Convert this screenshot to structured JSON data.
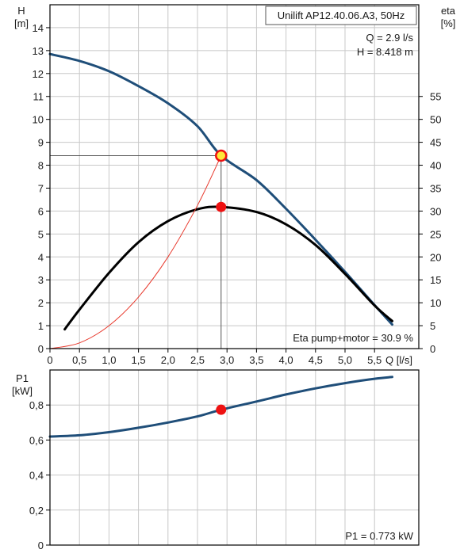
{
  "pump_model": "Unilift AP12.40.06.A3, 50Hz",
  "operating_point": {
    "q_text": "Q = 2.9 l/s",
    "h_text": "H = 8.418 m"
  },
  "eta_text": "Eta pump+motor = 30.9 %",
  "p1_text": "P1 = 0.773 kW",
  "colors": {
    "curve_blue": "#1f4e79",
    "eta_black": "#000000",
    "system_red": "#e8382c",
    "marker_red": "#ee1111",
    "marker_yellow": "#ffe83a",
    "grid": "#c8c8c8"
  },
  "chart_data": [
    {
      "type": "line",
      "name": "head-efficiency-chart",
      "left_axis": {
        "label_top": "H",
        "label_unit": "[m]",
        "range": [
          0,
          15
        ],
        "ticks": [
          "0",
          "1",
          "2",
          "3",
          "4",
          "5",
          "6",
          "7",
          "8",
          "9",
          "10",
          "11",
          "12",
          "13",
          "14"
        ]
      },
      "right_axis": {
        "label_top": "eta",
        "label_unit": "[%]",
        "range": [
          0,
          75
        ],
        "ticks": [
          "0",
          "5",
          "10",
          "15",
          "20",
          "25",
          "30",
          "35",
          "40",
          "45",
          "50",
          "55"
        ]
      },
      "x_axis": {
        "label": "Q [l/s]",
        "range": [
          0,
          6.25
        ],
        "ticks": [
          "0",
          "0,5",
          "1,0",
          "1,5",
          "2,0",
          "2,5",
          "3,0",
          "3,5",
          "4,0",
          "4,5",
          "5,0",
          "5,5"
        ]
      },
      "grid": true,
      "series": [
        {
          "kind": "head",
          "axis": "left",
          "points": [
            [
              0,
              12.85
            ],
            [
              0.5,
              12.55
            ],
            [
              1.0,
              12.1
            ],
            [
              1.5,
              11.45
            ],
            [
              2.0,
              10.7
            ],
            [
              2.5,
              9.7
            ],
            [
              2.9,
              8.418
            ],
            [
              3.5,
              7.35
            ],
            [
              4.0,
              6.1
            ],
            [
              4.5,
              4.75
            ],
            [
              5.0,
              3.35
            ],
            [
              5.5,
              1.9
            ],
            [
              5.8,
              1.05
            ]
          ]
        },
        {
          "kind": "efficiency",
          "axis": "right",
          "points": [
            [
              0.25,
              4.2
            ],
            [
              0.5,
              8.5
            ],
            [
              1.0,
              16.5
            ],
            [
              1.5,
              23.2
            ],
            [
              2.0,
              27.8
            ],
            [
              2.5,
              30.4
            ],
            [
              2.9,
              30.9
            ],
            [
              3.5,
              29.8
            ],
            [
              4.0,
              27.1
            ],
            [
              4.5,
              22.6
            ],
            [
              5.0,
              16.3
            ],
            [
              5.5,
              9.4
            ],
            [
              5.8,
              6.0
            ]
          ]
        },
        {
          "kind": "system",
          "axis": "left",
          "points": [
            [
              0,
              0
            ],
            [
              0.5,
              0.25
            ],
            [
              1.0,
              1.0
            ],
            [
              1.5,
              2.25
            ],
            [
              2.0,
              4.0
            ],
            [
              2.5,
              6.25
            ],
            [
              2.9,
              8.418
            ]
          ]
        }
      ],
      "operating_point": {
        "q": 2.9,
        "h": 8.418,
        "eta": 30.9
      }
    },
    {
      "type": "line",
      "name": "power-chart",
      "left_axis": {
        "label_top": "P1",
        "label_unit": "[kW]",
        "range": [
          0,
          1.0
        ],
        "ticks": [
          "0",
          "0,2",
          "0,4",
          "0,6",
          "0,8"
        ]
      },
      "grid": true,
      "series": [
        {
          "kind": "power",
          "points": [
            [
              0,
              0.62
            ],
            [
              0.5,
              0.627
            ],
            [
              1.0,
              0.645
            ],
            [
              1.5,
              0.67
            ],
            [
              2.0,
              0.7
            ],
            [
              2.5,
              0.735
            ],
            [
              2.9,
              0.773
            ],
            [
              3.5,
              0.82
            ],
            [
              4.0,
              0.86
            ],
            [
              4.5,
              0.895
            ],
            [
              5.0,
              0.925
            ],
            [
              5.5,
              0.95
            ],
            [
              5.8,
              0.96
            ]
          ]
        }
      ],
      "operating_point": {
        "q": 2.9,
        "p1": 0.773
      }
    }
  ]
}
